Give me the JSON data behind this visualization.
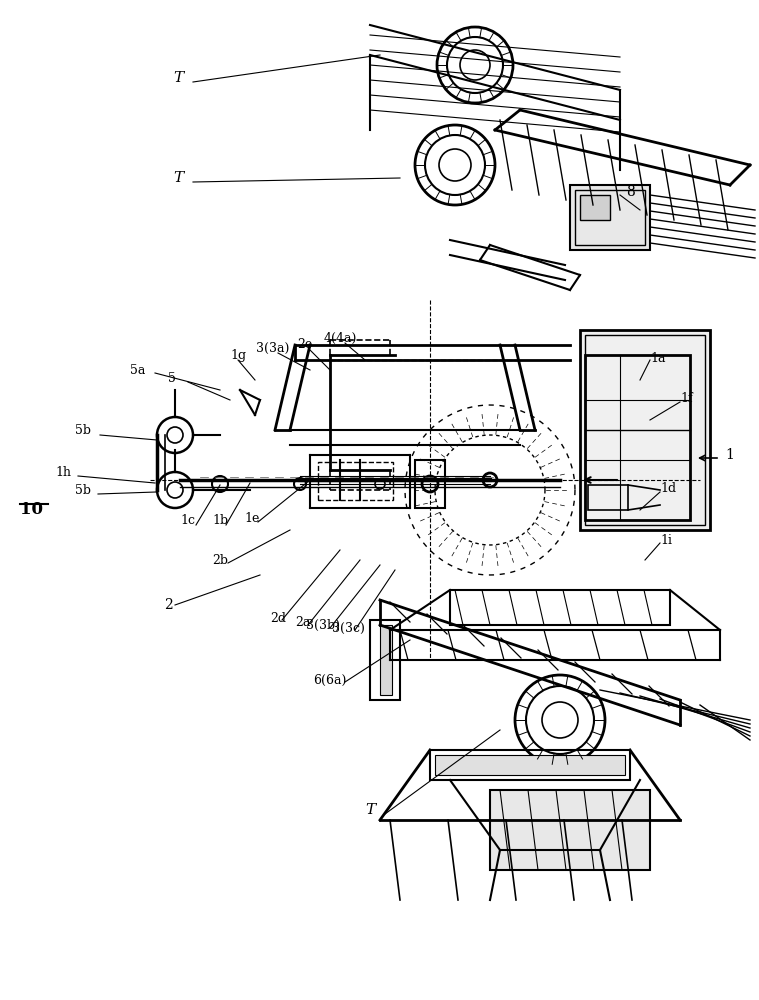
{
  "bg_color": "#ffffff",
  "line_color": "#000000",
  "fig_width": 7.59,
  "fig_height": 10.0,
  "labels": {
    "T_top": "T",
    "T_mid": "T",
    "T_bot": "T",
    "num_8": "8",
    "num_5a": "5a",
    "num_5": "5",
    "num_1g": "1g",
    "num_3_3a": "3(3a)",
    "num_2e": "2e",
    "num_4_4a": "4(4a)",
    "num_5b_top": "5b",
    "num_5b_bot": "5b",
    "num_1h": "1h",
    "num_1c": "1c",
    "num_1b": "1b",
    "num_1e": "1e",
    "num_2b": "2b",
    "num_2": "2",
    "num_2d": "2d",
    "num_2a": "2a",
    "num_3_3b": "3(3b)",
    "num_3_3c": "3(3c)",
    "num_6_6a": "6(6a)",
    "num_1a": "1a",
    "num_1f": "1f",
    "num_1": "1",
    "num_1d": "1d",
    "num_1i": "1i",
    "num_10": "10"
  }
}
